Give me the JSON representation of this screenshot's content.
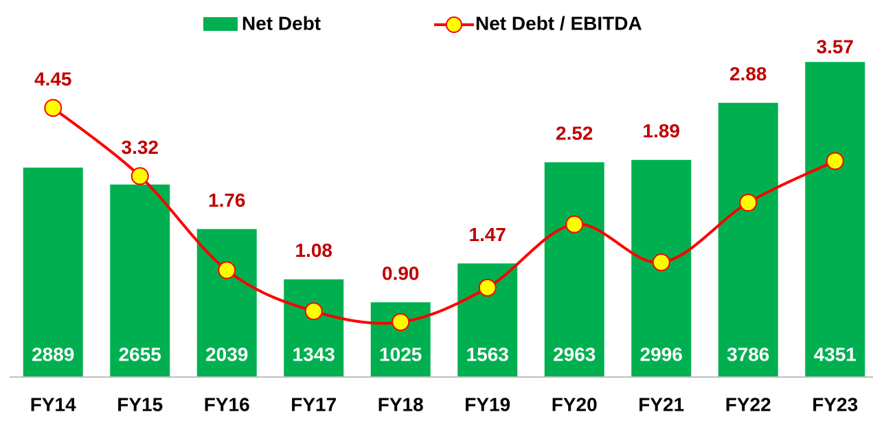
{
  "chart_data": {
    "type": "bar-line",
    "categories": [
      "FY14",
      "FY15",
      "FY16",
      "FY17",
      "FY18",
      "FY19",
      "FY20",
      "FY21",
      "FY22",
      "FY23"
    ],
    "series": [
      {
        "name": "Net Debt",
        "type": "bar",
        "color": "#00b050",
        "values": [
          2889,
          2655,
          2039,
          1343,
          1025,
          1563,
          2963,
          2996,
          3786,
          4351
        ]
      },
      {
        "name": "Net Debt / EBITDA",
        "type": "line",
        "axis": "y2",
        "color": "#ff0000",
        "marker_color": "#ffff00",
        "label_color": "#c00000",
        "values": [
          4.45,
          3.32,
          1.76,
          1.08,
          0.9,
          1.47,
          2.52,
          1.89,
          2.88,
          3.57
        ],
        "value_labels": [
          "4.45",
          "3.32",
          "1.76",
          "1.08",
          "0.90",
          "1.47",
          "2.52",
          "1.89",
          "2.88",
          "3.57"
        ]
      }
    ],
    "ylim": [
      0,
      4800
    ],
    "y2lim": [
      0,
      5.75
    ],
    "legend": "top"
  }
}
